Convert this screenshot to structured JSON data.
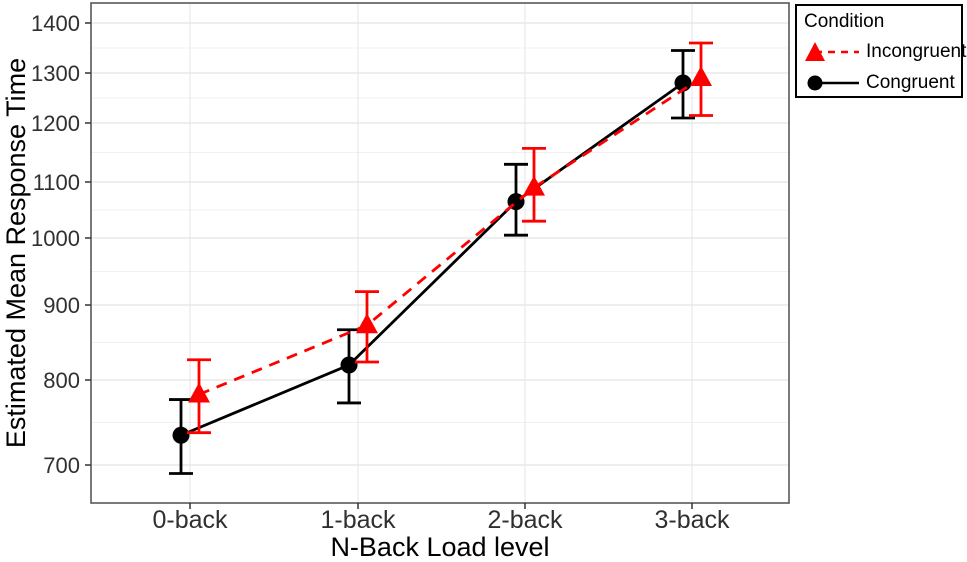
{
  "chart_data": {
    "type": "line",
    "title": "",
    "xlabel": "N-Back Load level",
    "ylabel": "Estimated Mean Response Time",
    "categories": [
      "0-back",
      "1-back",
      "2-back",
      "3-back"
    ],
    "y_ticks": [
      700,
      800,
      900,
      1000,
      1100,
      1200,
      1300,
      1400
    ],
    "ylim": [
      660,
      1545
    ],
    "grid": "horizontal major every 100 and minor every 50, light gray; vertical major at each category",
    "legend_title": "Condition",
    "legend_position": "top-right",
    "error_bars": "95% confidence intervals with caps",
    "series": [
      {
        "name": "Incongruent",
        "color": "#FF0000",
        "line_style": "dashed",
        "marker": "triangle",
        "values": [
          783,
          873,
          1090,
          1290
        ],
        "ci_lower": [
          738,
          824,
          1030,
          1215
        ],
        "ci_upper": [
          827,
          920,
          1157,
          1360
        ]
      },
      {
        "name": "Congruent",
        "color": "#000000",
        "line_style": "solid",
        "marker": "circle",
        "values": [
          735,
          820,
          1065,
          1280
        ],
        "ci_lower": [
          690,
          773,
          1005,
          1210
        ],
        "ci_upper": [
          777,
          867,
          1130,
          1345
        ]
      }
    ]
  }
}
